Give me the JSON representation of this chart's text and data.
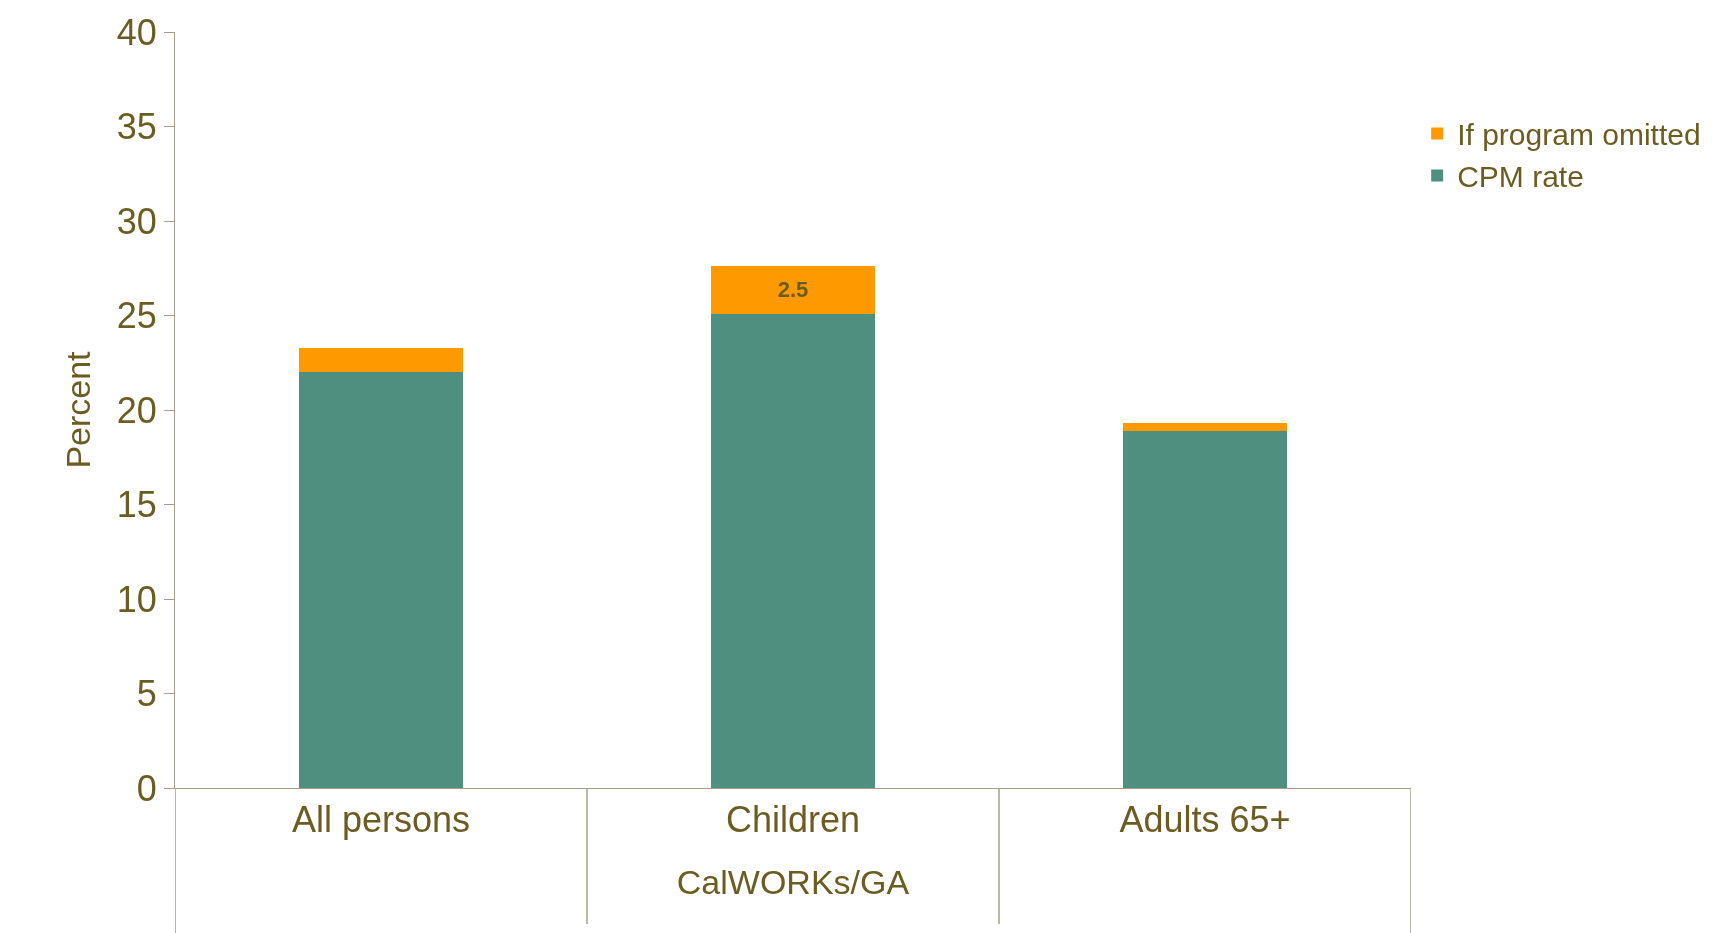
{
  "chart_data": {
    "type": "bar",
    "stacked": true,
    "xlabel": "CalWORKs/GA",
    "ylabel": "Percent",
    "categories": [
      "All persons",
      "Children",
      "Adults 65+"
    ],
    "series": [
      {
        "name": "CPM rate",
        "color": "#4f8f7f",
        "values": [
          22.0,
          25.1,
          18.9
        ]
      },
      {
        "name": "If program omitted",
        "color": "#ff9900",
        "values": [
          1.3,
          2.5,
          0.4
        ],
        "value_labels": [
          null,
          "2.5",
          null
        ]
      }
    ],
    "ylim": [
      0,
      40
    ],
    "yticks": [
      0,
      5,
      10,
      15,
      20,
      25,
      30,
      35,
      40
    ],
    "legend": "top right"
  }
}
